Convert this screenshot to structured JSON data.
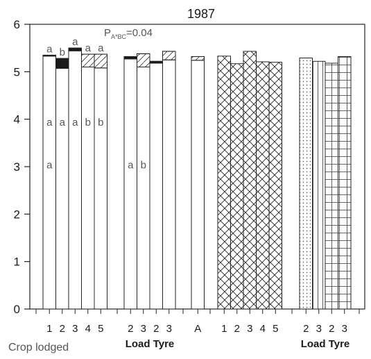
{
  "chart_data": {
    "type": "bar",
    "title": "1987",
    "ylim": [
      0,
      6
    ],
    "yticks": [
      "0",
      "1",
      "2",
      "3",
      "4",
      "5",
      "6"
    ],
    "grid": false,
    "annotation": {
      "prefix": "P",
      "subscript": "A*BC",
      "value": "=0.04"
    },
    "footer_label": "Crop lodged",
    "group_labels": [
      "Load Tyre",
      "Load Tyre"
    ],
    "groups": [
      {
        "pattern": "blank",
        "bars": [
          {
            "label": "1",
            "value": 5.35,
            "segment_top": 5.33,
            "segment_fill": "solid",
            "letters": [
              "a",
              "a",
              "a"
            ]
          },
          {
            "label": "2",
            "value": 5.28,
            "segment_top": 5.07,
            "segment_fill": "solid",
            "letters": [
              "b",
              "a"
            ]
          },
          {
            "label": "3",
            "value": 5.5,
            "segment_top": 5.44,
            "segment_fill": "solid",
            "letters": [
              "a",
              "a"
            ]
          },
          {
            "label": "4",
            "value": 5.37,
            "segment_top": 5.1,
            "segment_fill": "hatched",
            "letters": [
              "a",
              "b"
            ]
          },
          {
            "label": "5",
            "value": 5.37,
            "segment_top": 5.08,
            "segment_fill": "hatched",
            "letters": [
              "a",
              "b"
            ]
          }
        ]
      },
      {
        "pattern": "blank",
        "bars": [
          {
            "label": "2",
            "value": 5.32,
            "segment_top": 5.27,
            "segment_fill": "solid",
            "letters": [
              "a"
            ]
          },
          {
            "label": "3",
            "value": 5.38,
            "segment_top": 5.1,
            "segment_fill": "hatched",
            "letters": [
              "b"
            ]
          },
          {
            "label": "2",
            "value": 5.22,
            "segment_top": 5.18,
            "segment_fill": "solid",
            "letters": []
          },
          {
            "label": "3",
            "value": 5.43,
            "segment_top": 5.25,
            "segment_fill": "hatched",
            "letters": []
          }
        ]
      },
      {
        "pattern": "blank",
        "bars": [
          {
            "label": "A",
            "value": 5.32,
            "segment_top": 5.24,
            "segment_fill": "hatched",
            "letters": []
          }
        ]
      },
      {
        "pattern": "crosshatch",
        "bars": [
          {
            "label": "1",
            "value": 5.33
          },
          {
            "label": "2",
            "value": 5.17
          },
          {
            "label": "3",
            "value": 5.43
          },
          {
            "label": "4",
            "value": 5.21
          },
          {
            "label": "5",
            "value": 5.2
          }
        ]
      },
      {
        "pattern": "mixed",
        "bars": [
          {
            "label": "2",
            "value": 5.29,
            "pattern": "dotted"
          },
          {
            "label": "3",
            "value": 5.22,
            "pattern": "vertical"
          },
          {
            "label": "2",
            "value": 5.18,
            "pattern": "grid"
          },
          {
            "label": "3",
            "value": 5.32,
            "pattern": "grid"
          }
        ]
      }
    ]
  }
}
